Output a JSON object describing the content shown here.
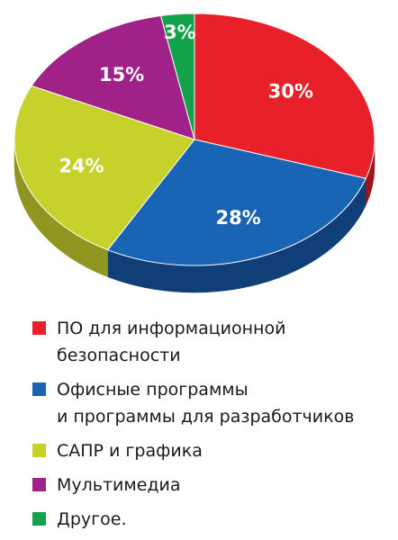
{
  "chart_data": {
    "type": "pie",
    "categories": [
      "ПО для информационной\nбезопасности",
      "Офисные программы\nи программы для разработчиков",
      "САПР и графика",
      "Мультимедиа",
      "Другое."
    ],
    "values": [
      30,
      28,
      24,
      15,
      3
    ],
    "value_labels": [
      "30%",
      "28%",
      "24%",
      "15%",
      "3%"
    ],
    "colors": [
      "#e8202a",
      "#1a64b6",
      "#c6d12c",
      "#a02288",
      "#11a24a"
    ],
    "side_colors": [
      "#9e1419",
      "#103f78",
      "#8e9620",
      "#6a165b",
      "#0b6b31"
    ],
    "legend_position": "bottom-left",
    "title": ""
  }
}
